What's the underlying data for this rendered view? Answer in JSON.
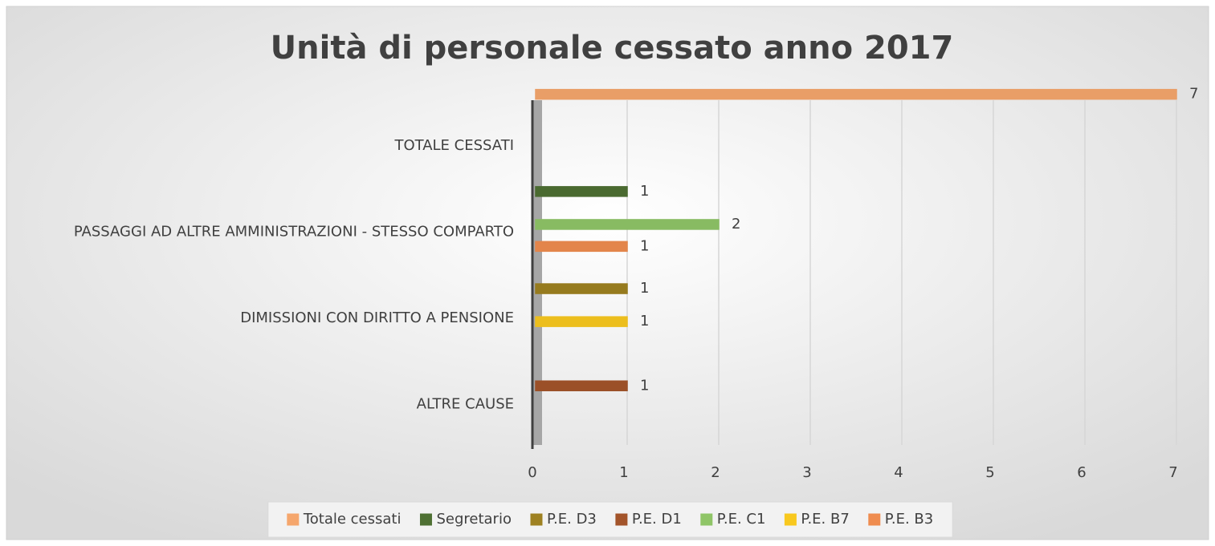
{
  "chart_data": {
    "type": "hbar",
    "title": "Unità di personale cessato anno 2017",
    "categories": [
      "TOTALE CESSATI",
      "PASSAGGI AD ALTRE AMMINISTRAZIONI - STESSO COMPARTO",
      "DIMISSIONI CON DIRITTO A PENSIONE",
      "ALTRE CAUSE"
    ],
    "series": [
      {
        "name": "Totale cessati",
        "color": "#f5a66c",
        "values": [
          7,
          null,
          null,
          null
        ]
      },
      {
        "name": "Segretario",
        "color": "#4e7033",
        "values": [
          null,
          1,
          null,
          null
        ]
      },
      {
        "name": "P.E. D3",
        "color": "#9e8121",
        "values": [
          null,
          null,
          1,
          null
        ]
      },
      {
        "name": "P.E. D1",
        "color": "#a3542a",
        "values": [
          null,
          null,
          null,
          1
        ]
      },
      {
        "name": "P.E. C1",
        "color": "#8fc567",
        "values": [
          null,
          2,
          null,
          null
        ]
      },
      {
        "name": "P.E. B7",
        "color": "#f8c81e",
        "values": [
          null,
          null,
          1,
          null
        ]
      },
      {
        "name": "P.E. B3",
        "color": "#ef8c4f",
        "values": [
          null,
          1,
          null,
          null
        ]
      }
    ],
    "xlim": [
      0,
      7
    ],
    "xticks": [
      0,
      1,
      2,
      3,
      4,
      5,
      6,
      7
    ],
    "grid": true,
    "legend": "bottom"
  }
}
